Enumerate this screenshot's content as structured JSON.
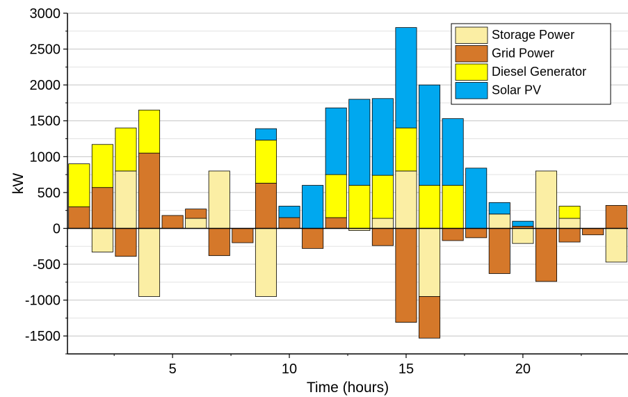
{
  "chart_data": {
    "type": "bar",
    "stacked": "positive and negative stacked separately",
    "x": [
      1,
      2,
      3,
      4,
      5,
      6,
      7,
      8,
      9,
      10,
      11,
      12,
      13,
      14,
      15,
      16,
      17,
      18,
      19,
      20,
      21,
      22,
      23,
      24
    ],
    "series": [
      {
        "name": "Storage Power",
        "color": "#fbeea4",
        "values": [
          0,
          -330,
          800,
          -950,
          0,
          140,
          800,
          0,
          -950,
          0,
          0,
          0,
          -30,
          140,
          800,
          -950,
          0,
          0,
          200,
          -210,
          800,
          140,
          0,
          -470
        ]
      },
      {
        "name": "Grid Power",
        "color": "#d5782a",
        "values": [
          300,
          570,
          -390,
          1050,
          180,
          130,
          -380,
          -200,
          630,
          150,
          -280,
          150,
          0,
          -240,
          -1310,
          -580,
          -170,
          -130,
          -630,
          30,
          -740,
          -190,
          -90,
          320
        ]
      },
      {
        "name": "Diesel Generator",
        "color": "#ffff00",
        "values": [
          600,
          600,
          600,
          600,
          0,
          0,
          0,
          0,
          600,
          0,
          0,
          600,
          600,
          600,
          600,
          600,
          600,
          0,
          0,
          0,
          0,
          170,
          0,
          0
        ]
      },
      {
        "name": "Solar PV",
        "color": "#00a8ef",
        "values": [
          0,
          0,
          0,
          0,
          0,
          0,
          0,
          0,
          160,
          160,
          600,
          930,
          1200,
          1070,
          1400,
          1400,
          930,
          840,
          160,
          70,
          0,
          0,
          0,
          0
        ]
      }
    ],
    "xlabel": "Time (hours)",
    "ylabel": "kW",
    "xlim": [
      0.5,
      24.5
    ],
    "ylim": [
      -1750,
      3000
    ],
    "x_ticks": [
      5,
      10,
      15,
      20
    ],
    "x_tick_labels": [
      "5",
      "10",
      "15",
      "20"
    ],
    "y_ticks": [
      -1500,
      -1000,
      -500,
      0,
      500,
      1000,
      1500,
      2000,
      2500,
      3000
    ],
    "y_tick_labels": [
      "-1500",
      "-1000",
      "-500",
      "0",
      "500",
      "1000",
      "1500",
      "2000",
      "2500",
      "3000"
    ],
    "grid": "horizontal",
    "legend_position": "top-right"
  }
}
